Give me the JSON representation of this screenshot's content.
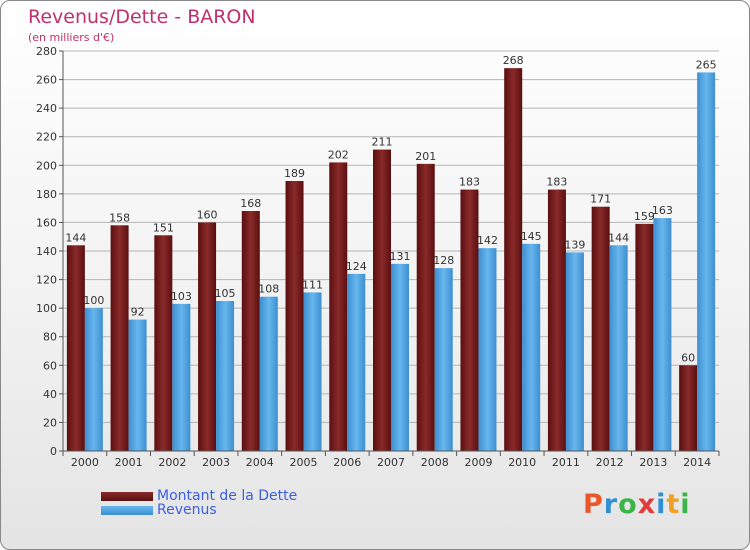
{
  "title": "Revenus/Dette - BARON",
  "subtitle": "(en milliers d'€)",
  "logo": {
    "letters": [
      "P",
      "r",
      "o",
      "x",
      "i",
      "t",
      "i"
    ],
    "colors": [
      "#e8562a",
      "#2f8fd6",
      "#3bb54a",
      "#e23b3b",
      "#2f8fd6",
      "#f0a020",
      "#3bb54a"
    ]
  },
  "chart_data": {
    "type": "bar",
    "categories": [
      "2000",
      "2001",
      "2002",
      "2003",
      "2004",
      "2005",
      "2006",
      "2007",
      "2008",
      "2009",
      "2010",
      "2011",
      "2012",
      "2013",
      "2014"
    ],
    "series": [
      {
        "name": "Montant de la Dette",
        "color": "#7a1c1c",
        "values": [
          144,
          158,
          151,
          160,
          168,
          189,
          202,
          211,
          201,
          183,
          268,
          183,
          171,
          159,
          60
        ]
      },
      {
        "name": "Revenus",
        "color": "#4fa3e0",
        "values": [
          100,
          92,
          103,
          105,
          108,
          111,
          124,
          131,
          128,
          142,
          145,
          139,
          144,
          163,
          265
        ]
      }
    ],
    "ylim": [
      0,
      280
    ],
    "yticks": [
      0,
      20,
      40,
      60,
      80,
      100,
      120,
      140,
      160,
      180,
      200,
      220,
      240,
      260,
      280
    ],
    "grid": true,
    "legend": "bottom-left"
  }
}
